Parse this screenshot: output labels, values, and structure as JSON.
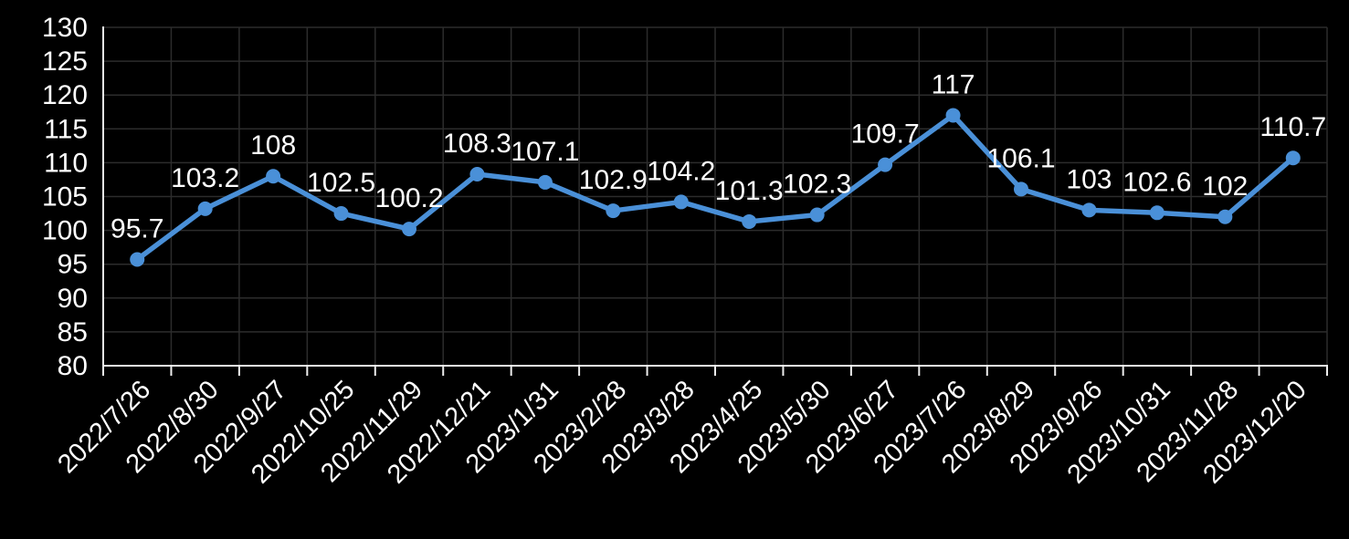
{
  "chart_data": {
    "type": "line",
    "categories": [
      "2022/7/26",
      "2022/8/30",
      "2022/9/27",
      "2022/10/25",
      "2022/11/29",
      "2022/12/21",
      "2023/1/31",
      "2023/2/28",
      "2023/3/28",
      "2023/4/25",
      "2023/5/30",
      "2023/6/27",
      "2023/7/26",
      "2023/8/29",
      "2023/9/26",
      "2023/10/31",
      "2023/11/28",
      "2023/12/20"
    ],
    "values": [
      95.7,
      103.2,
      108,
      102.5,
      100.2,
      108.3,
      107.1,
      102.9,
      104.2,
      101.3,
      102.3,
      109.7,
      117,
      106.1,
      103,
      102.6,
      102,
      110.7
    ],
    "data_labels": [
      "95.7",
      "103.2",
      "108",
      "102.5",
      "100.2",
      "108.3",
      "107.1",
      "102.9",
      "104.2",
      "101.3",
      "102.3",
      "109.7",
      "117",
      "106.1",
      "103",
      "102.6",
      "102",
      "110.7"
    ],
    "y_tick_labels": [
      "80",
      "85",
      "90",
      "95",
      "100",
      "105",
      "110",
      "115",
      "120",
      "125",
      "130"
    ],
    "ylim": [
      80,
      130
    ],
    "ytick_step": 5,
    "grid": true,
    "legend_position": "none",
    "x_label_rotation_deg": 45,
    "colors": {
      "background": "#000000",
      "line": "#4A90D8",
      "marker": "#4A90D8",
      "grid": "#2C2C2C",
      "axis": "#EDEDED",
      "text": "#FFFFFF"
    }
  }
}
